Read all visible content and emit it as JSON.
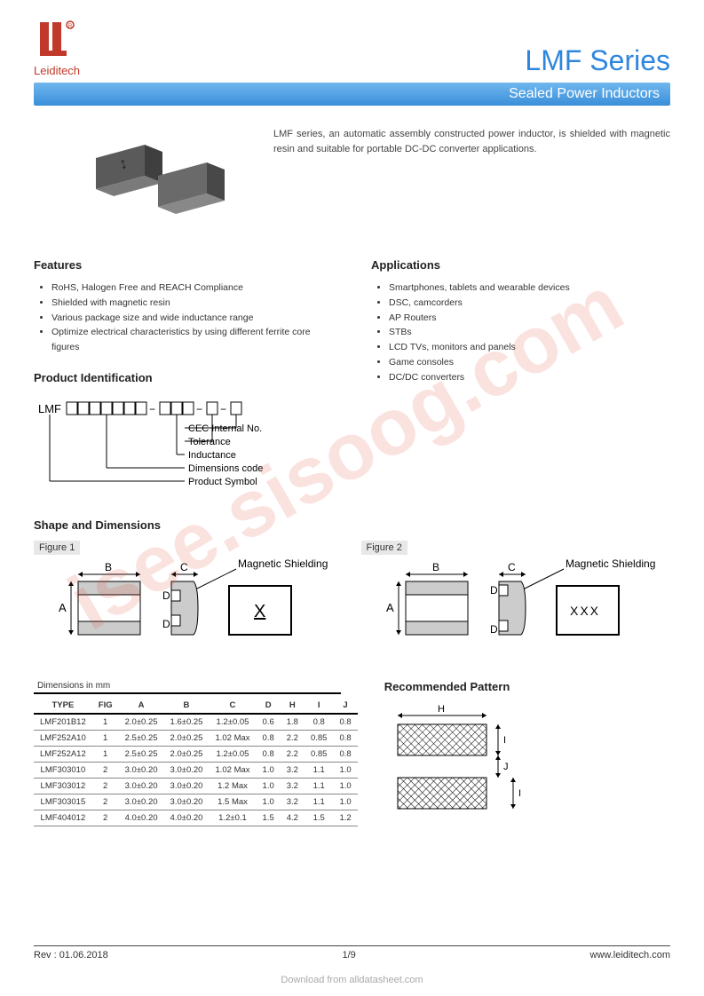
{
  "brand": "Leiditech",
  "logo_color": "#c0392b",
  "series_title": "LMF Series",
  "series_color": "#2e86de",
  "subtitle": "Sealed Power Inductors",
  "subtitle_bg_top": "#6fb7ef",
  "subtitle_bg_bottom": "#3a8fd9",
  "intro": "LMF series, an automatic assembly constructed power inductor, is shielded with magnetic resin and suitable for portable DC-DC converter applications.",
  "features_heading": "Features",
  "features": [
    "RoHS, Halogen Free and REACH Compliance",
    "Shielded with magnetic resin",
    "Various package size and wide inductance range",
    "Optimize electrical characteristics by using different ferrite core figures"
  ],
  "apps_heading": "Applications",
  "applications": [
    "Smartphones, tablets and wearable devices",
    "DSC, camcorders",
    "AP Routers",
    "STBs",
    "LCD TVs, monitors and panels",
    "Game consoles",
    "DC/DC converters"
  ],
  "prod_id_heading": "Product Identification",
  "prod_id": {
    "prefix": "LMF",
    "boxes1": 7,
    "boxes2": 3,
    "boxes3": 1,
    "boxes4": 1,
    "labels": [
      "CEC Internal No.",
      "Tolerance",
      "Inductance",
      "Dimensions code",
      "Product Symbol"
    ]
  },
  "shape_heading": "Shape and Dimensions",
  "figure1_label": "Figure 1",
  "figure2_label": "Figure 2",
  "mag_shield_label": "Magnetic Shielding",
  "dim_caption": "Dimensions in mm",
  "dim_table": {
    "columns": [
      "TYPE",
      "FIG",
      "A",
      "B",
      "C",
      "D",
      "H",
      "I",
      "J"
    ],
    "rows": [
      [
        "LMF201B12",
        "1",
        "2.0±0.25",
        "1.6±0.25",
        "1.2±0.05",
        "0.6",
        "1.8",
        "0.8",
        "0.8"
      ],
      [
        "LMF252A10",
        "1",
        "2.5±0.25",
        "2.0±0.25",
        "1.02 Max",
        "0.8",
        "2.2",
        "0.85",
        "0.8"
      ],
      [
        "LMF252A12",
        "1",
        "2.5±0.25",
        "2.0±0.25",
        "1.2±0.05",
        "0.8",
        "2.2",
        "0.85",
        "0.8"
      ],
      [
        "LMF303010",
        "2",
        "3.0±0.20",
        "3.0±0.20",
        "1.02 Max",
        "1.0",
        "3.2",
        "1.1",
        "1.0"
      ],
      [
        "LMF303012",
        "2",
        "3.0±0.20",
        "3.0±0.20",
        "1.2 Max",
        "1.0",
        "3.2",
        "1.1",
        "1.0"
      ],
      [
        "LMF303015",
        "2",
        "3.0±0.20",
        "3.0±0.20",
        "1.5 Max",
        "1.0",
        "3.2",
        "1.1",
        "1.0"
      ],
      [
        "LMF404012",
        "2",
        "4.0±0.20",
        "4.0±0.20",
        "1.2±0.1",
        "1.5",
        "4.2",
        "1.5",
        "1.2"
      ]
    ]
  },
  "rec_pattern_heading": "Recommended Pattern",
  "footer": {
    "rev": "Rev : 01.06.2018",
    "page": "1/9",
    "url": "www.leiditech.com"
  },
  "download_note": "Download from alldatasheet.com",
  "watermark_text": "isee.sisoog.com",
  "watermark_color": "rgba(220,60,40,0.15)"
}
